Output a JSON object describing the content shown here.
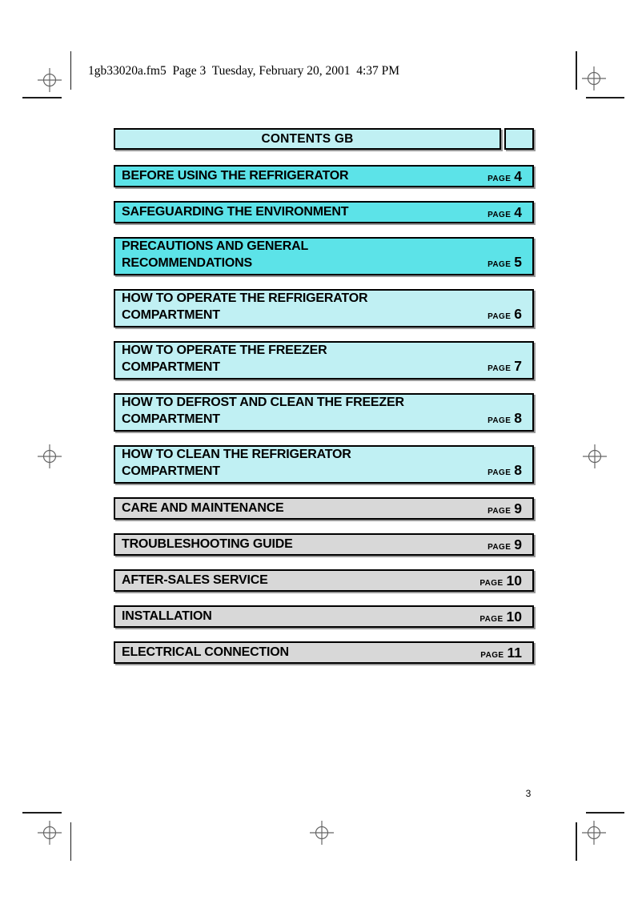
{
  "document": {
    "print_header": "1gb33020a.fm5  Page 3  Tuesday, February 20, 2001  4:37 PM",
    "folio_page_number": "3"
  },
  "contents": {
    "title": "CONTENTS GB",
    "page_label": "PAGE",
    "sections": [
      {
        "title_lines": [
          "BEFORE USING THE REFRIGERATOR"
        ],
        "page": "4",
        "tone": "cyan"
      },
      {
        "title_lines": [
          "SAFEGUARDING THE ENVIRONMENT"
        ],
        "page": "4",
        "tone": "cyan"
      },
      {
        "title_lines": [
          "PRECAUTIONS AND GENERAL",
          "RECOMMENDATIONS"
        ],
        "page": "5",
        "tone": "cyan"
      },
      {
        "title_lines": [
          "HOW TO OPERATE THE REFRIGERATOR",
          "COMPARTMENT"
        ],
        "page": "6",
        "tone": "light_cyan"
      },
      {
        "title_lines": [
          "HOW TO OPERATE THE FREEZER",
          "COMPARTMENT"
        ],
        "page": "7",
        "tone": "light_cyan"
      },
      {
        "title_lines": [
          "HOW TO DEFROST AND CLEAN THE FREEZER",
          "COMPARTMENT"
        ],
        "page": "8",
        "tone": "light_cyan"
      },
      {
        "title_lines": [
          "HOW TO CLEAN THE REFRIGERATOR",
          "COMPARTMENT"
        ],
        "page": "8",
        "tone": "light_cyan"
      },
      {
        "title_lines": [
          "CARE AND MAINTENANCE"
        ],
        "page": "9",
        "tone": "gray"
      },
      {
        "title_lines": [
          "TROUBLESHOOTING GUIDE"
        ],
        "page": "9",
        "tone": "gray"
      },
      {
        "title_lines": [
          "AFTER-SALES SERVICE"
        ],
        "page": "10",
        "tone": "gray"
      },
      {
        "title_lines": [
          "INSTALLATION"
        ],
        "page": "10",
        "tone": "gray"
      },
      {
        "title_lines": [
          "ELECTRICAL CONNECTION"
        ],
        "page": "11",
        "tone": "gray"
      }
    ]
  },
  "colors": {
    "cyan": "#5ce3e8",
    "light_cyan": "#c0f0f3",
    "gray": "#d8d8d8",
    "shadow": "#9a9a9a",
    "mark_gray": "#666666"
  }
}
